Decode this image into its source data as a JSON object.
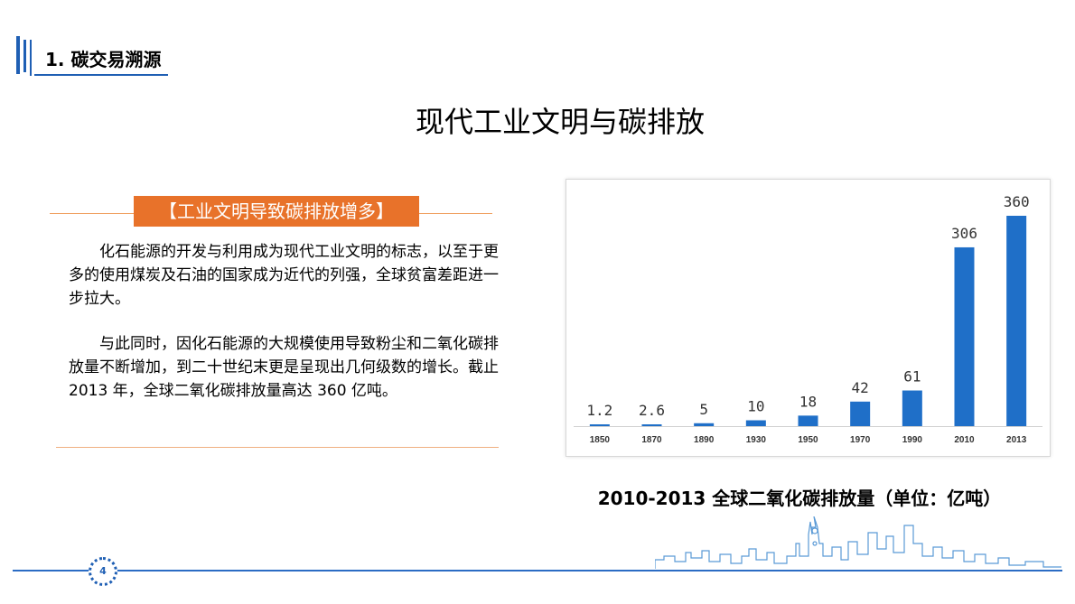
{
  "header": {
    "section_title": "1. 碳交易溯源"
  },
  "page_title": "现代工业文明与碳排放",
  "badge": "【工业文明导致碳排放增多】",
  "paragraphs": [
    "化石能源的开发与利用成为现代工业文明的标志，以至于更多的使用煤炭及石油的国家成为近代的列强，全球贫富差距进一步拉大。",
    "与此同时，因化石能源的大规模使用导致粉尘和二氧化碳排放量不断增加，到二十世纪末更是呈现出几何级数的增长。截止 2013 年，全球二氧化碳排放量高达 360 亿吨。"
  ],
  "chart_data": {
    "type": "bar",
    "categories": [
      "1850",
      "1870",
      "1890",
      "1930",
      "1950",
      "1970",
      "1990",
      "2010",
      "2013"
    ],
    "values": [
      1.2,
      2.6,
      5,
      10,
      18,
      42,
      61,
      306,
      360
    ],
    "data_labels": [
      "1.2",
      "2.6",
      "5",
      "10",
      "18",
      "42",
      "61",
      "306",
      "360"
    ],
    "title": "",
    "xlabel": "",
    "ylabel": "",
    "ylim": [
      0,
      360
    ],
    "grid": false,
    "legend": "none",
    "bar_color": "#1f6fc8"
  },
  "chart_caption": "2010-2013 全球二氧化碳排放量（单位：亿吨）",
  "footer": {
    "page_number": "4"
  },
  "colors": {
    "accent_blue": "#1f5fb4",
    "accent_orange": "#e8722a"
  }
}
